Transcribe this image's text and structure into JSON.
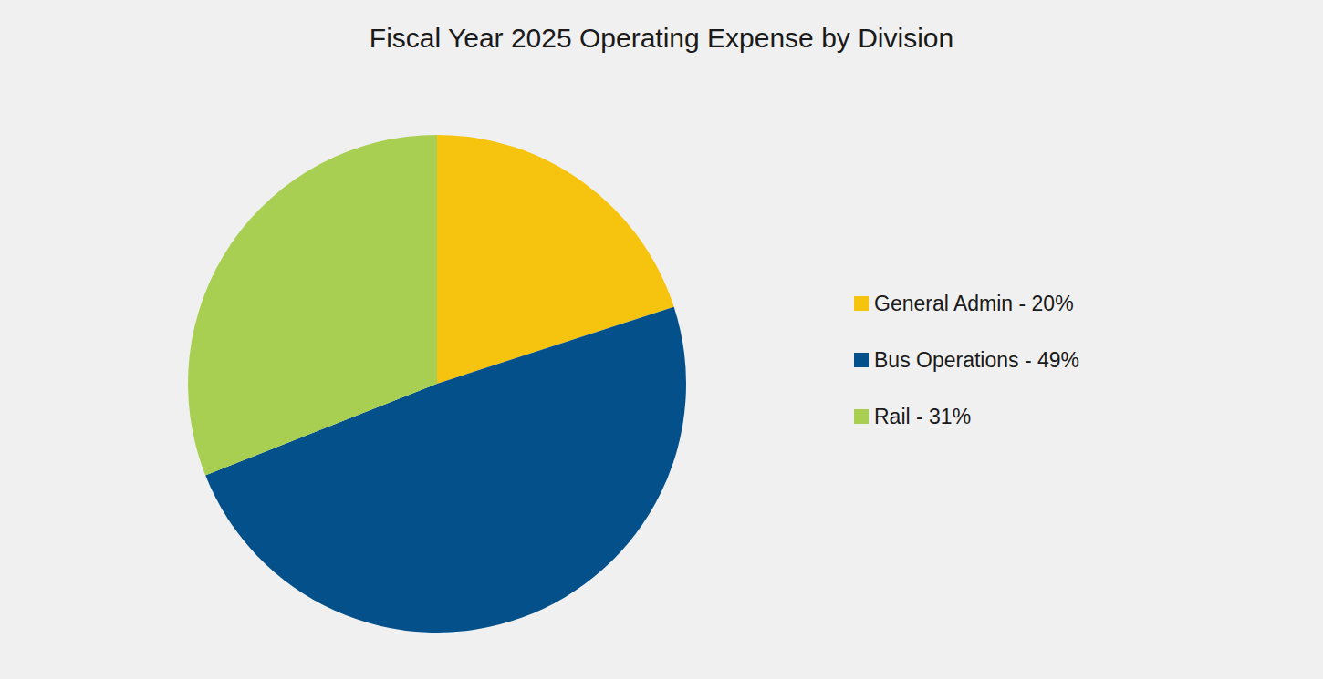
{
  "chart_data": {
    "type": "pie",
    "title": "Fiscal Year 2025 Operating Expense by Division",
    "categories": [
      "General Admin - 20%",
      "Bus Operations - 49%",
      "Rail - 31%"
    ],
    "values": [
      20,
      49,
      31
    ],
    "colors": [
      "#f6c40f",
      "#03508a",
      "#a8cf51"
    ],
    "legend": "right"
  }
}
